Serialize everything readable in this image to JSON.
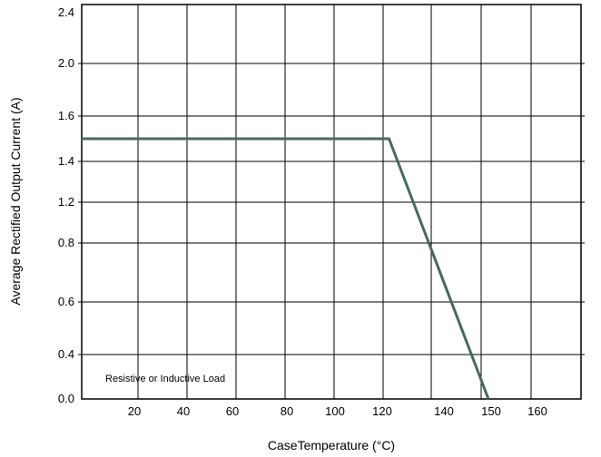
{
  "chart_data": {
    "type": "line",
    "xlabel": "CaseTemperature (°C)",
    "ylabel": "Average Rectified Output Current (A)",
    "x_ticks": [
      "20",
      "40",
      "60",
      "80",
      "100",
      "120",
      "140",
      "150",
      "160"
    ],
    "y_ticks": [
      "0.0",
      "0.4",
      "0.6",
      "0.8",
      "1.2",
      "1.4",
      "1.6",
      "2.0",
      "2.4"
    ],
    "annotation": "Resistive or Inductive Load",
    "grid": true,
    "series": [
      {
        "x": [
          0,
          122,
          150
        ],
        "y": [
          1.5,
          1.5,
          0.0
        ],
        "color": "#466a62"
      }
    ]
  }
}
